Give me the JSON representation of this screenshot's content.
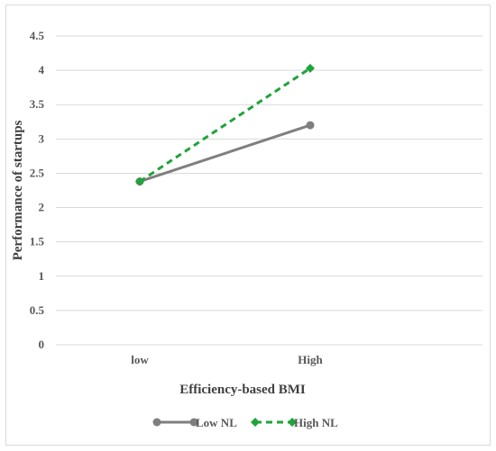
{
  "chart_data": {
    "type": "line",
    "categories": [
      "low",
      "High"
    ],
    "series": [
      {
        "name": "Low NL",
        "values": [
          2.38,
          3.2
        ],
        "color": "#7f7f7f",
        "style": "solid",
        "marker": "circle"
      },
      {
        "name": "High NL",
        "values": [
          2.38,
          4.03
        ],
        "color": "#1fa33a",
        "style": "dashed",
        "marker": "diamond"
      }
    ],
    "xlabel": "Efficiency-based BMI",
    "ylabel": "Performance of startups",
    "ylim": [
      0,
      4.5
    ],
    "yticks": [
      "0",
      "0.5",
      "1",
      "1.5",
      "2",
      "2.5",
      "3",
      "3.5",
      "4",
      "4.5"
    ],
    "grid": true,
    "legend_position": "bottom"
  }
}
